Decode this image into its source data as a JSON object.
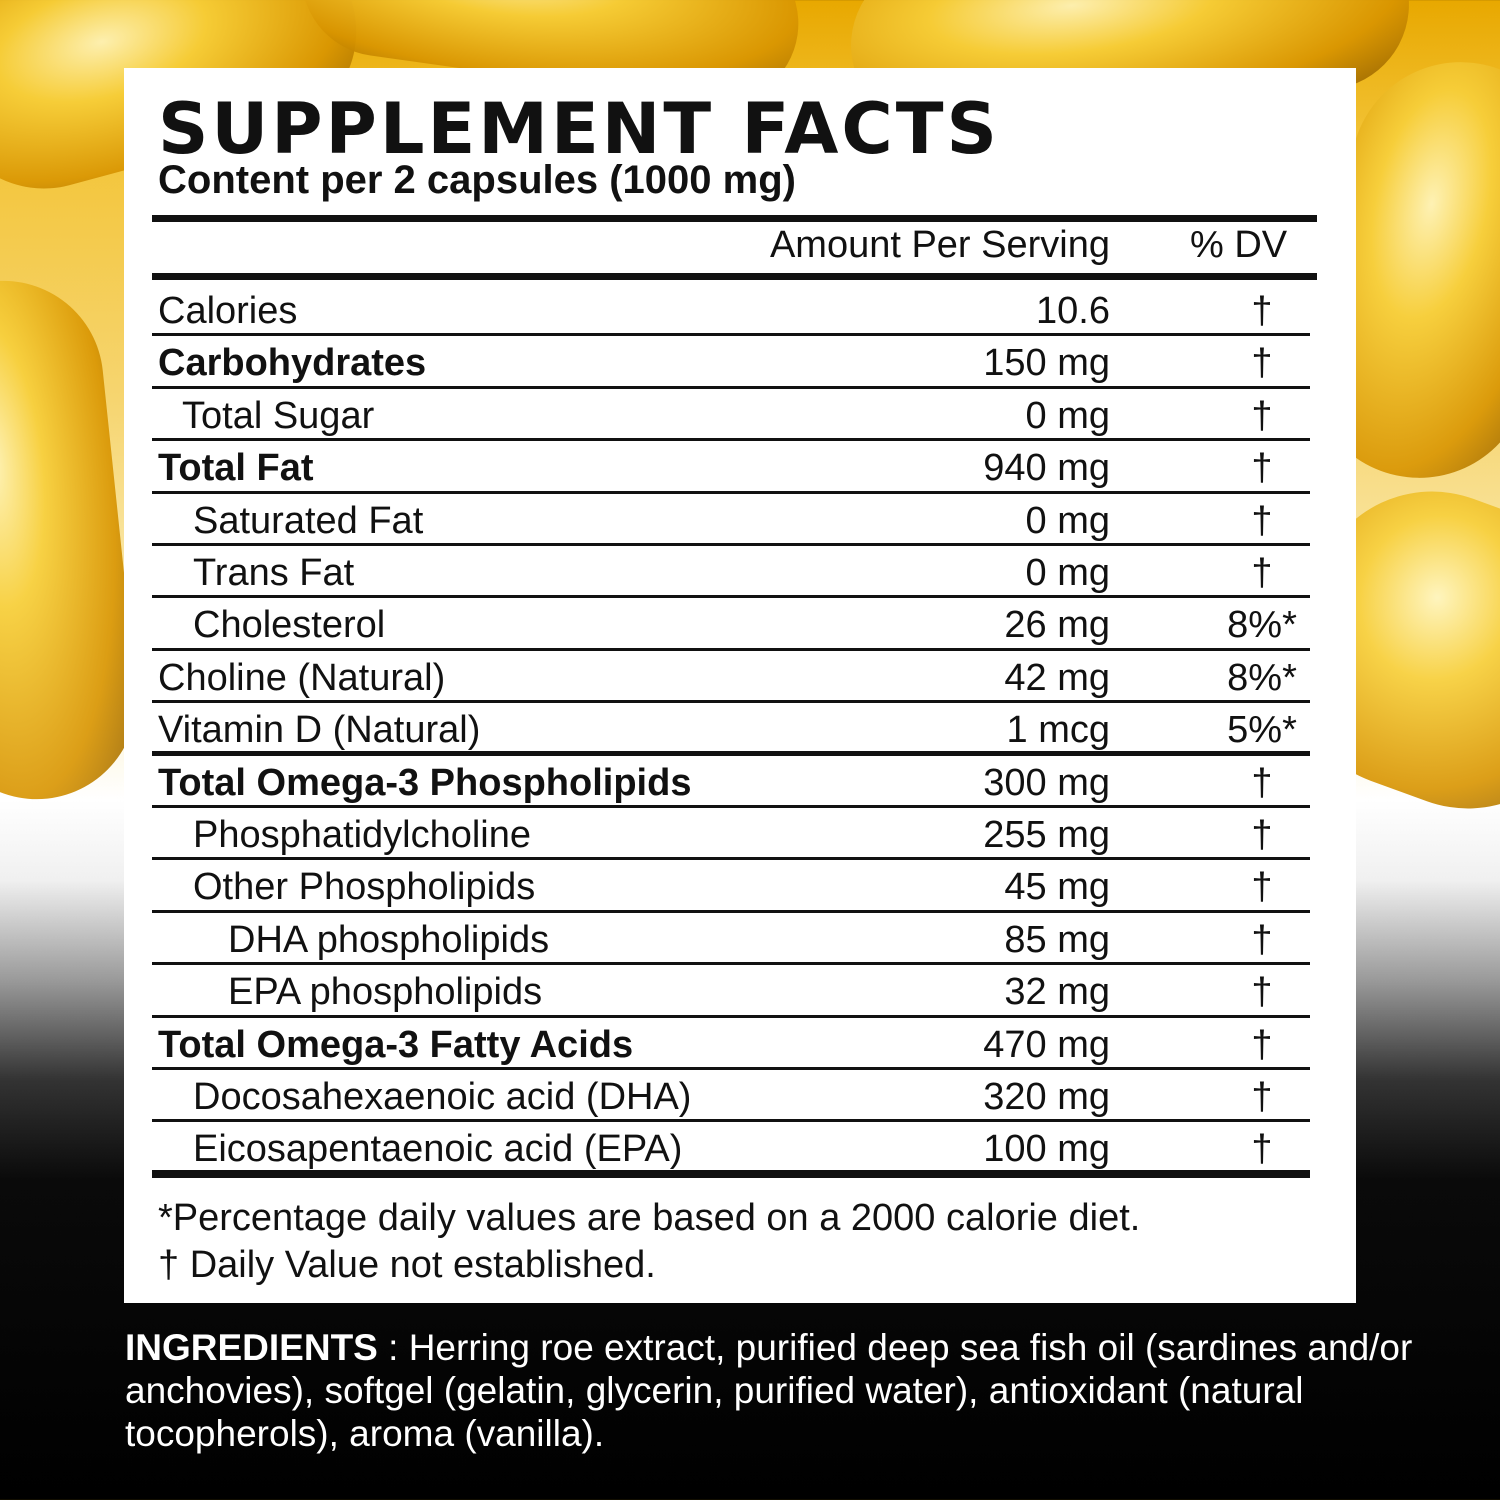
{
  "title": "SUPPLEMENT FACTS",
  "subtitle": "Content per 2 capsules (1000 mg)",
  "header": {
    "amount": "Amount Per Serving",
    "dv": "% DV"
  },
  "rows": [
    {
      "name": "Calories",
      "amount": "10.6",
      "dv": "†"
    },
    {
      "name": "Carbohydrates",
      "amount": "150 mg",
      "dv": "†"
    },
    {
      "name": "Total Sugar",
      "amount": "0 mg",
      "dv": "†"
    },
    {
      "name": "Total Fat",
      "amount": "940 mg",
      "dv": "†"
    },
    {
      "name": "Saturated Fat",
      "amount": "0 mg",
      "dv": "†"
    },
    {
      "name": "Trans Fat",
      "amount": "0 mg",
      "dv": "†"
    },
    {
      "name": "Cholesterol",
      "amount": "26 mg",
      "dv": "8%*"
    },
    {
      "name": "Choline (Natural)",
      "amount": "42 mg",
      "dv": "8%*"
    },
    {
      "name": "Vitamin D (Natural)",
      "amount": "1 mcg",
      "dv": "5%*"
    },
    {
      "name": "Total Omega-3 Phospholipids",
      "amount": "300 mg",
      "dv": "†"
    },
    {
      "name": "Phosphatidylcholine",
      "amount": "255 mg",
      "dv": "†"
    },
    {
      "name": "Other Phospholipids",
      "amount": "45 mg",
      "dv": "†"
    },
    {
      "name": "DHA phospholipids",
      "amount": "85 mg",
      "dv": "†"
    },
    {
      "name": "EPA phospholipids",
      "amount": "32 mg",
      "dv": "†"
    },
    {
      "name": "Total Omega-3 Fatty Acids",
      "amount": "470 mg",
      "dv": "†"
    },
    {
      "name": "Docosahexaenoic acid (DHA)",
      "amount": "320 mg",
      "dv": "†"
    },
    {
      "name": "Eicosapentaenoic acid (EPA)",
      "amount": "100 mg",
      "dv": "†"
    }
  ],
  "footnotes": [
    "*Percentage daily values are based on a 2000 calorie diet.",
    "† Daily Value not established."
  ],
  "ingredients": {
    "label": "INGREDIENTS",
    "text": " : Herring roe extract, purified deep sea fish oil (sardines and/or anchovies), softgel (gelatin, glycerin, purified water), antioxidant (natural tocopherols), aroma (vanilla)."
  }
}
